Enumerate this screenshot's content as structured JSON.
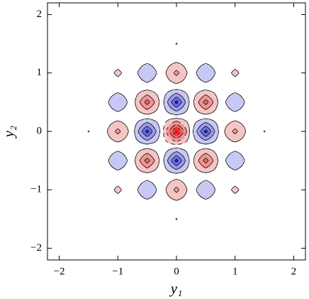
{
  "chart_data": {
    "type": "contour",
    "xlabel": "y₁",
    "ylabel": "y₂",
    "xlim": [
      -2.2,
      2.2
    ],
    "ylim": [
      -2.2,
      2.2
    ],
    "xticks": [
      {
        "value": -2,
        "label": "−2"
      },
      {
        "value": -1,
        "label": "−1"
      },
      0,
      1,
      2
    ],
    "yticks": [
      {
        "value": -2,
        "label": "−2"
      },
      {
        "value": -1,
        "label": "−1"
      },
      0,
      1,
      2
    ],
    "levels": [
      -0.9,
      -0.7,
      -0.5,
      -0.3,
      -0.1,
      0.1,
      0.3,
      0.5,
      0.7,
      0.9
    ],
    "colors": [
      "#0000ff",
      "#3a3ae8",
      "#6b6be8",
      "#9a9aee",
      "#c8c8f4",
      "#ffffff",
      "#f7c4c4",
      "#f09494",
      "#ea6a6a",
      "#f03a3a",
      "#ff0000"
    ],
    "line_color": "#000000",
    "x": [
      -1.75,
      -1.5,
      -1.25,
      -1,
      -0.75,
      -0.5,
      -0.25,
      0,
      0.25,
      0.5,
      0.75,
      1,
      1.25,
      1.5,
      1.75
    ],
    "y": [
      -1.75,
      -1.5,
      -1.25,
      -1,
      -0.75,
      -0.5,
      -0.25,
      0,
      0.25,
      0.5,
      0.75,
      1,
      1.25,
      1.5,
      1.75
    ],
    "z": [
      [
        0,
        0,
        0,
        0,
        0,
        0,
        0,
        0,
        0,
        0,
        0,
        0,
        0,
        0,
        0
      ],
      [
        0,
        0.0111,
        0,
        -0.0388,
        0,
        0.0821,
        0,
        -0.1054,
        0,
        0.0821,
        0,
        -0.0388,
        0,
        0.0111,
        0
      ],
      [
        0,
        0,
        0,
        0,
        0,
        0,
        0,
        0,
        0,
        0,
        0,
        0,
        0,
        0,
        0
      ],
      [
        0,
        -0.0388,
        0,
        0.1353,
        0,
        -0.2865,
        0,
        0.3679,
        0,
        -0.2865,
        0,
        0.1353,
        0,
        -0.0388,
        0
      ],
      [
        0,
        0,
        0,
        0,
        0,
        0,
        0,
        0,
        0,
        0,
        0,
        0,
        0,
        0,
        0
      ],
      [
        0,
        0.0821,
        0,
        -0.2865,
        0,
        0.6065,
        0,
        -0.7788,
        0,
        0.6065,
        0,
        -0.2865,
        0,
        0.0821,
        0
      ],
      [
        0,
        0,
        0,
        0,
        0,
        0,
        0,
        0,
        0,
        0,
        0,
        0,
        0,
        0,
        0
      ],
      [
        0,
        -0.1054,
        0,
        0.3679,
        0,
        -0.7788,
        0,
        1,
        0,
        -0.7788,
        0,
        0.3679,
        0,
        -0.1054,
        0
      ],
      [
        0,
        0,
        0,
        0,
        0,
        0,
        0,
        0,
        0,
        0,
        0,
        0,
        0,
        0,
        0
      ],
      [
        0,
        0.0821,
        0,
        -0.2865,
        0,
        0.6065,
        0,
        -0.7788,
        0,
        0.6065,
        0,
        -0.2865,
        0,
        0.0821,
        0
      ],
      [
        0,
        0,
        0,
        0,
        0,
        0,
        0,
        0,
        0,
        0,
        0,
        0,
        0,
        0,
        0
      ],
      [
        0,
        -0.0388,
        0,
        0.1353,
        0,
        -0.2865,
        0,
        0.3679,
        0,
        -0.2865,
        0,
        0.1353,
        0,
        -0.0388,
        0
      ],
      [
        0,
        0,
        0,
        0,
        0,
        0,
        0,
        0,
        0,
        0,
        0,
        0,
        0,
        0,
        0
      ],
      [
        0,
        0.0111,
        0,
        -0.0388,
        0,
        0.0821,
        0,
        -0.1054,
        0,
        0.0821,
        0,
        -0.0388,
        0,
        0.0111,
        0
      ],
      [
        0,
        0,
        0,
        0,
        0,
        0,
        0,
        0,
        0,
        0,
        0,
        0,
        0,
        0,
        0
      ]
    ]
  }
}
